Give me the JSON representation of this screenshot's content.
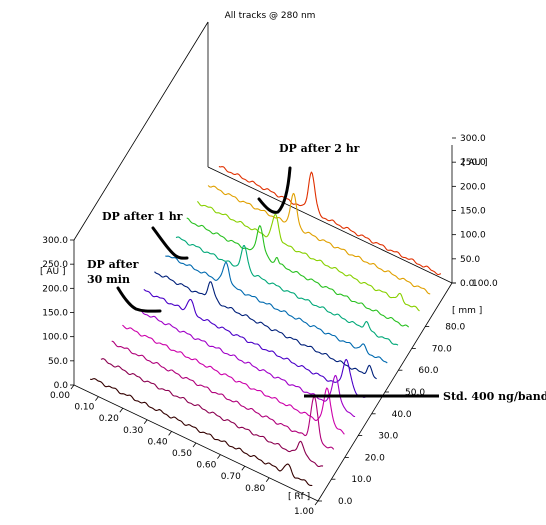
{
  "chart_data": {
    "type": "line",
    "title": "All tracks @ 280 nm",
    "xlabel": "[ Rf ]",
    "ylabel_left": "[ AU ]",
    "ylabel_right": "[ AU ]",
    "depth_label": "[ mm ]",
    "x_range": [
      0.0,
      1.0
    ],
    "y_range": [
      0.0,
      300.0
    ],
    "depth_range": [
      0.0,
      100.0
    ],
    "x_ticks": [
      "0.00",
      "0.10",
      "0.20",
      "0.30",
      "0.40",
      "0.50",
      "0.60",
      "0.70",
      "0.80",
      "1.00"
    ],
    "y_ticks": [
      "0.0",
      "50.0",
      "100.0",
      "150.0",
      "200.0",
      "250.0",
      "300.0"
    ],
    "y_ticks_right": [
      "0.0",
      "50.0",
      "100.0",
      "150.0",
      "200.0",
      "250.0",
      "300.0"
    ],
    "depth_ticks": [
      "0.0",
      "10.0",
      "20.0",
      "30.0",
      "40.0",
      "50.0",
      "60.0",
      "70.0",
      "80.0",
      "100.0"
    ],
    "grid": false,
    "legend": "none",
    "series": [
      {
        "color": "#330000",
        "depth": 3.0,
        "base": 14,
        "peaks": [
          {
            "rf": 0.86,
            "h": 18,
            "w": 0.012
          }
        ]
      },
      {
        "color": "#8b0050",
        "depth": 11.0,
        "base": 16,
        "peaks": [
          {
            "rf": 0.87,
            "h": 32,
            "w": 0.013
          }
        ]
      },
      {
        "color": "#b0007a",
        "depth": 19.0,
        "base": 15,
        "peaks": [
          {
            "rf": 0.88,
            "h": 90,
            "w": 0.014
          }
        ]
      },
      {
        "color": "#cc00aa",
        "depth": 27.0,
        "base": 14,
        "peaks": [
          {
            "rf": 0.89,
            "h": 75,
            "w": 0.014
          }
        ]
      },
      {
        "color": "#a000c8",
        "depth": 35.0,
        "base": 14,
        "peaks": [
          {
            "rf": 0.88,
            "h": 64,
            "w": 0.014
          }
        ]
      },
      {
        "color": "#4a00c8",
        "depth": 43.0,
        "base": 14,
        "peaks": [
          {
            "rf": 0.24,
            "h": 28,
            "w": 0.012
          },
          {
            "rf": 0.88,
            "h": 60,
            "w": 0.015
          }
        ]
      },
      {
        "color": "#00207a",
        "depth": 51.0,
        "base": 16,
        "peaks": [
          {
            "rf": 0.28,
            "h": 36,
            "w": 0.012
          },
          {
            "rf": 0.93,
            "h": 22,
            "w": 0.01
          }
        ]
      },
      {
        "color": "#006ab0",
        "depth": 59.0,
        "base": 16,
        "peaks": [
          {
            "rf": 0.3,
            "h": 44,
            "w": 0.013
          },
          {
            "rf": 0.86,
            "h": 12,
            "w": 0.01
          }
        ]
      },
      {
        "color": "#00a878",
        "depth": 67.0,
        "base": 16,
        "peaks": [
          {
            "rf": 0.33,
            "h": 48,
            "w": 0.013
          },
          {
            "rf": 0.83,
            "h": 16,
            "w": 0.01
          }
        ]
      },
      {
        "color": "#28c020",
        "depth": 75.0,
        "base": 16,
        "peaks": [
          {
            "rf": 0.35,
            "h": 62,
            "w": 0.013
          },
          {
            "rf": 0.42,
            "h": 14,
            "w": 0.006
          }
        ]
      },
      {
        "color": "#88d000",
        "depth": 83.0,
        "base": 16,
        "peaks": [
          {
            "rf": 0.37,
            "h": 52,
            "w": 0.013
          },
          {
            "rf": 0.88,
            "h": 12,
            "w": 0.01
          }
        ]
      },
      {
        "color": "#e0a000",
        "depth": 91.0,
        "base": 16,
        "peaks": [
          {
            "rf": 0.4,
            "h": 65,
            "w": 0.013
          }
        ]
      },
      {
        "color": "#e03000",
        "depth": 99.0,
        "base": 18,
        "peaks": [
          {
            "rf": 0.43,
            "h": 82,
            "w": 0.013
          }
        ]
      }
    ],
    "annotations": {
      "dp_2hr": "DP after 2 hr",
      "dp_1hr": "DP after 1 hr",
      "dp_30min_line1": "DP after",
      "dp_30min_line2": "30 min",
      "std": "Std. 400 ng/band"
    }
  }
}
